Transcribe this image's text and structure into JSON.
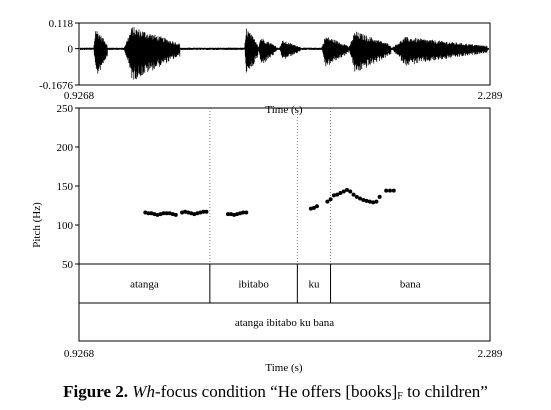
{
  "chart_data": [
    {
      "type": "line",
      "name": "waveform",
      "ylim": [
        -0.1676,
        0.118
      ],
      "y_ticks": [
        "0.118",
        "0",
        "-0.1676"
      ],
      "xlim": [
        0.9268,
        2.289
      ],
      "x_tick_labels": [
        "0.9268",
        "2.289"
      ],
      "xlabel": "Time (s)"
    },
    {
      "type": "scatter",
      "name": "pitch",
      "ylabel": "Pitch (Hz)",
      "xlabel": "Time (s)",
      "xlim": [
        0.9268,
        2.289
      ],
      "x_tick_labels": [
        "0.9268",
        "2.289"
      ],
      "ylim": [
        50,
        250
      ],
      "y_ticks": [
        "50",
        "100",
        "150",
        "200",
        "250"
      ],
      "segment_boundaries": [
        1.3605,
        1.6505,
        1.7605
      ],
      "points": [
        [
          1.1466,
          116
        ],
        [
          1.1567,
          115
        ],
        [
          1.1668,
          115
        ],
        [
          1.1769,
          114
        ],
        [
          1.187,
          113
        ],
        [
          1.1971,
          114
        ],
        [
          1.2072,
          115
        ],
        [
          1.2173,
          115
        ],
        [
          1.2274,
          115
        ],
        [
          1.2375,
          114
        ],
        [
          1.2476,
          113
        ],
        [
          1.2684,
          116
        ],
        [
          1.2785,
          117
        ],
        [
          1.2886,
          116
        ],
        [
          1.2987,
          115
        ],
        [
          1.3088,
          114
        ],
        [
          1.3189,
          115
        ],
        [
          1.329,
          116
        ],
        [
          1.3391,
          117
        ],
        [
          1.3492,
          117
        ],
        [
          1.4206,
          114
        ],
        [
          1.4307,
          114
        ],
        [
          1.4408,
          113
        ],
        [
          1.4509,
          114
        ],
        [
          1.461,
          115
        ],
        [
          1.4711,
          116
        ],
        [
          1.4812,
          116
        ],
        [
          1.6953,
          121
        ],
        [
          1.7054,
          122
        ],
        [
          1.7155,
          124
        ],
        [
          1.75,
          130
        ],
        [
          1.7608,
          133
        ],
        [
          1.7716,
          138
        ],
        [
          1.7825,
          139
        ],
        [
          1.7933,
          141
        ],
        [
          1.8042,
          143
        ],
        [
          1.815,
          145
        ],
        [
          1.8258,
          143
        ],
        [
          1.8367,
          139
        ],
        [
          1.8475,
          136
        ],
        [
          1.8583,
          134
        ],
        [
          1.8692,
          132
        ],
        [
          1.88,
          131
        ],
        [
          1.8908,
          130
        ],
        [
          1.9017,
          129
        ],
        [
          1.9125,
          130
        ],
        [
          1.9233,
          136
        ],
        [
          1.945,
          144
        ],
        [
          1.9575,
          144
        ],
        [
          1.97,
          144
        ]
      ]
    }
  ],
  "tiers": [
    {
      "name": "words",
      "intervals": [
        {
          "label": "atanga",
          "start": 0.9268,
          "end": 1.3605
        },
        {
          "label": "ibitabo",
          "start": 1.3605,
          "end": 1.6505
        },
        {
          "label": "ku",
          "start": 1.6505,
          "end": 1.7605
        },
        {
          "label": "bana",
          "start": 1.7605,
          "end": 2.289
        }
      ]
    },
    {
      "name": "sentence",
      "intervals": [
        {
          "label": "atanga ibitabo ku bana",
          "start": 0.9268,
          "end": 2.289
        }
      ]
    }
  ],
  "caption": {
    "figure_label": "Figure 2.",
    "wh": "Wh",
    "text_before": "-focus condition “He offers [books]",
    "focus_mark": "F",
    "text_after": " to children”"
  }
}
